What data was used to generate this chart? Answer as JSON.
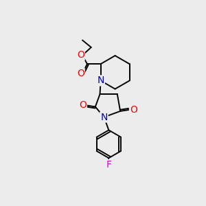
{
  "bg_color": "#ececec",
  "atom_colors": {
    "C": "#000000",
    "N": "#0000cc",
    "O": "#ff0000",
    "F": "#dd00dd"
  },
  "bond_color": "#000000",
  "line_width": 1.4
}
